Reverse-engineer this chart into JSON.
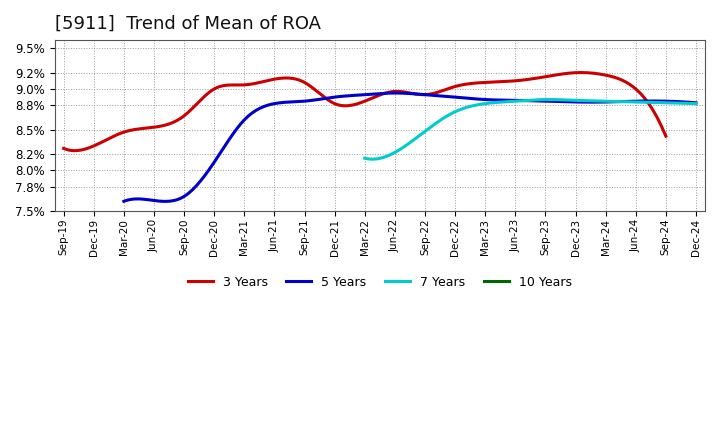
{
  "title": "[5911]  Trend of Mean of ROA",
  "background_color": "#ffffff",
  "plot_background_color": "#ffffff",
  "grid_color": "#aaaaaa",
  "title_fontsize": 13,
  "tick_labels": [
    "Sep-19",
    "Dec-19",
    "Mar-20",
    "Jun-20",
    "Sep-20",
    "Dec-20",
    "Mar-21",
    "Jun-21",
    "Sep-21",
    "Dec-21",
    "Mar-22",
    "Jun-22",
    "Sep-22",
    "Dec-22",
    "Mar-23",
    "Jun-23",
    "Sep-23",
    "Dec-23",
    "Mar-24",
    "Jun-24",
    "Sep-24",
    "Dec-24"
  ],
  "ylim": [
    0.075,
    0.096
  ],
  "yticks": [
    0.075,
    0.078,
    0.08,
    0.082,
    0.085,
    0.088,
    0.09,
    0.092,
    0.095
  ],
  "series_3y": {
    "color": "#cc0000",
    "label": "3 Years",
    "x": [
      0,
      1,
      2,
      3,
      4,
      5,
      6,
      7,
      8,
      9,
      10,
      11,
      12,
      13,
      14,
      15,
      16,
      17,
      18,
      19,
      20
    ],
    "y": [
      0.0827,
      0.083,
      0.0847,
      0.0853,
      0.0867,
      0.09,
      0.0905,
      0.0912,
      0.0908,
      0.0882,
      0.0885,
      0.0897,
      0.0893,
      0.0903,
      0.0908,
      0.091,
      0.0915,
      0.092,
      0.0917,
      0.09,
      0.0842
    ]
  },
  "series_5y": {
    "color": "#0000cc",
    "label": "5 Years",
    "x": [
      2,
      3,
      4,
      5,
      6,
      7,
      8,
      9,
      10,
      11,
      12,
      13,
      14,
      15,
      16,
      17,
      18,
      19,
      20,
      21
    ],
    "y": [
      0.0762,
      0.0763,
      0.0768,
      0.081,
      0.0862,
      0.0882,
      0.0885,
      0.089,
      0.0893,
      0.0895,
      0.0893,
      0.089,
      0.0887,
      0.0886,
      0.0885,
      0.0884,
      0.0884,
      0.0885,
      0.0885,
      0.0883
    ]
  },
  "series_7y": {
    "color": "#00cccc",
    "label": "7 Years",
    "x": [
      10,
      11,
      12,
      13,
      14,
      15,
      16,
      17,
      18,
      19,
      20,
      21
    ],
    "y": [
      0.0815,
      0.0822,
      0.0848,
      0.0872,
      0.0882,
      0.0885,
      0.0887,
      0.0886,
      0.0885,
      0.0884,
      0.0883,
      0.0882
    ]
  },
  "series_10y": {
    "color": "#006600",
    "label": "10 Years"
  },
  "legend_colors": [
    "#cc0000",
    "#0000cc",
    "#00cccc",
    "#006600"
  ],
  "legend_labels": [
    "3 Years",
    "5 Years",
    "7 Years",
    "10 Years"
  ]
}
